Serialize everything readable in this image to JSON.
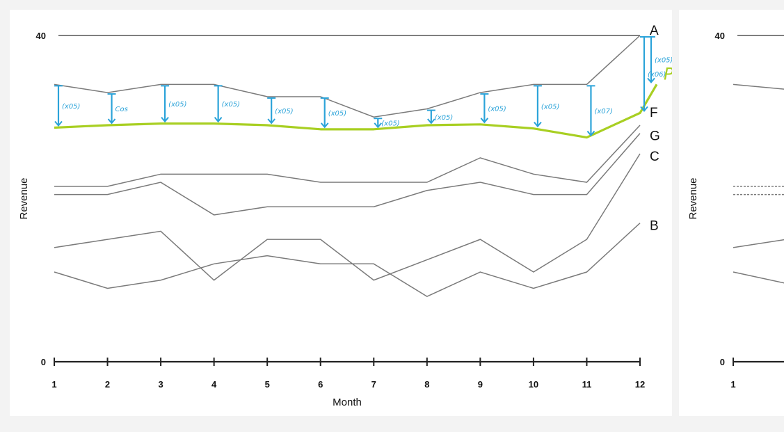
{
  "chart_data": [
    {
      "type": "line",
      "title": "",
      "xlabel": "Month",
      "ylabel": "Revenue",
      "x": [
        1,
        2,
        3,
        4,
        5,
        6,
        7,
        8,
        9,
        10,
        11,
        12
      ],
      "ylim": [
        0,
        40
      ],
      "ytick_labels": [
        "0",
        "40"
      ],
      "grid": false,
      "series": [
        {
          "name": "A",
          "values": [
            34,
            33,
            34,
            34,
            32.5,
            32.5,
            30,
            31,
            33,
            34,
            34,
            40
          ]
        },
        {
          "name": "F",
          "values": [
            21.5,
            21.5,
            23,
            23,
            23,
            22,
            22,
            22,
            25,
            23,
            22,
            29
          ]
        },
        {
          "name": "G",
          "values": [
            20.5,
            20.5,
            22,
            18,
            19,
            19,
            19,
            21,
            22,
            20.5,
            20.5,
            28
          ]
        },
        {
          "name": "C",
          "values": [
            14,
            15,
            16,
            10,
            15,
            15,
            10,
            12.5,
            15,
            11,
            15,
            25.5
          ]
        },
        {
          "name": "B",
          "values": [
            11,
            9,
            10,
            12,
            13,
            12,
            12,
            8,
            11,
            9,
            11,
            17
          ]
        }
      ],
      "annotations": {
        "projection_label": "Proj.? (A)",
        "projection_values": [
          28.7,
          29,
          29.2,
          29.2,
          29,
          28.5,
          28.5,
          29,
          29.1,
          28.6,
          27.5,
          30.5,
          34
        ],
        "arrow_labels": [
          "(x05)",
          "Cos",
          "(x05)",
          "(x05)",
          "(x05)",
          "(x05)",
          "(x05)",
          "(x05)",
          "(x05)",
          "(x05)",
          "(x07)",
          "(x06)",
          "(x05)"
        ],
        "arrow_color": "#2ba3d9",
        "projection_color": "#a8cf22"
      }
    },
    {
      "type": "line",
      "title": "",
      "xlabel": "",
      "ylabel": "Revenue",
      "ylim": [
        0,
        40
      ],
      "ytick_labels": [
        "0",
        "40"
      ],
      "x_visible": [
        1
      ],
      "series": [
        {
          "values": [
            34,
            33.4
          ]
        },
        {
          "values": [
            21.5
          ]
        },
        {
          "values": [
            20.5
          ]
        },
        {
          "values": [
            14,
            15
          ]
        },
        {
          "values": [
            11,
            9.6
          ]
        }
      ]
    }
  ]
}
